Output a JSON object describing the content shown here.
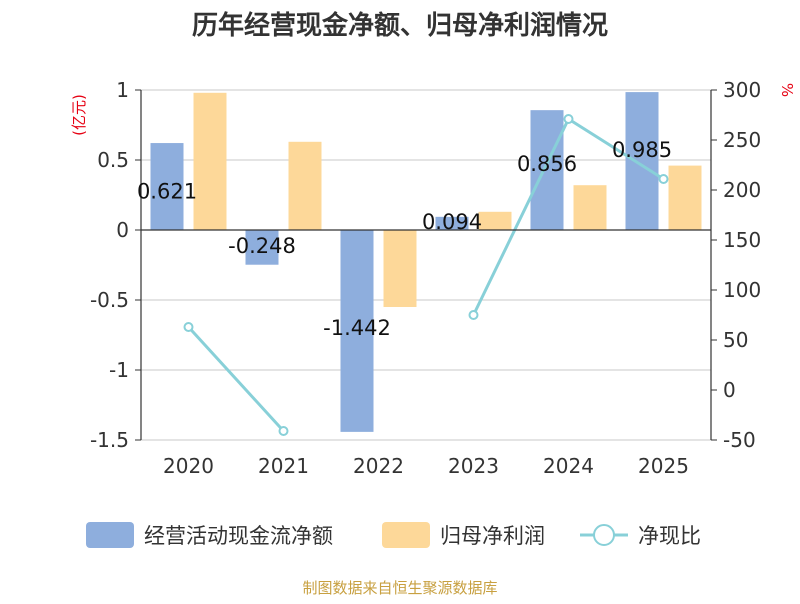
{
  "chart_data": {
    "type": "bar",
    "title": "历年经营现金净额、归母净利润情况",
    "categories": [
      "2020",
      "2021",
      "2022",
      "2023",
      "2024",
      "2025"
    ],
    "y_left": {
      "unit": "(亿元)",
      "ylim": [
        -1.5,
        1
      ],
      "ticks": [
        "1",
        "0.5",
        "0",
        "-0.5",
        "-1",
        "-1.5"
      ],
      "tick_values": [
        1,
        0.5,
        0,
        -0.5,
        -1,
        -1.5
      ]
    },
    "y_right": {
      "unit": "%",
      "ylim": [
        -50,
        300
      ],
      "ticks": [
        "300",
        "250",
        "200",
        "150",
        "100",
        "50",
        "0",
        "-50"
      ],
      "tick_values": [
        300,
        250,
        200,
        150,
        100,
        50,
        0,
        -50
      ]
    },
    "series": [
      {
        "name": "经营活动现金流净额",
        "kind": "bar",
        "axis": "left",
        "color": "#8eaedd",
        "values": [
          0.621,
          -0.248,
          -1.442,
          0.094,
          0.856,
          0.985
        ],
        "labels": [
          "0.621",
          "-0.248",
          "-1.442",
          "0.094",
          "0.856",
          "0.985"
        ]
      },
      {
        "name": "归母净利润",
        "kind": "bar",
        "axis": "left",
        "color": "#fdd899",
        "values": [
          0.98,
          0.63,
          -0.55,
          0.13,
          0.32,
          0.46
        ]
      },
      {
        "name": "净现比",
        "kind": "line",
        "axis": "right",
        "color": "#88d0d8",
        "values": [
          63,
          -41,
          null,
          75,
          271,
          211
        ]
      }
    ]
  },
  "footer": "制图数据来自恒生聚源数据库"
}
